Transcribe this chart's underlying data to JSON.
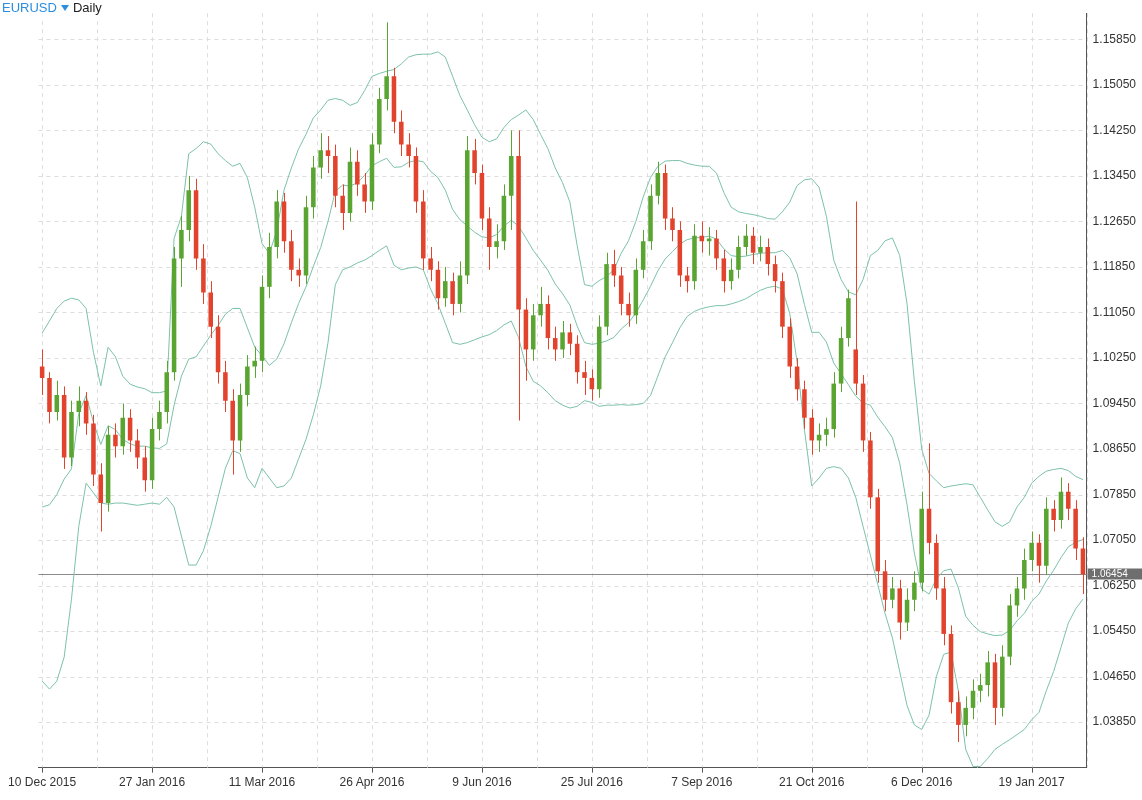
{
  "chart_data": {
    "type": "candlestick",
    "title": "EURUSD",
    "subtitle": "Daily",
    "categories": [
      "10 Dec 2015",
      null,
      null,
      null,
      null,
      null,
      null,
      null,
      null,
      null,
      null,
      null,
      null,
      null,
      null,
      "27 Jan 2016",
      null,
      null,
      null,
      null,
      null,
      null,
      null,
      null,
      null,
      null,
      null,
      null,
      null,
      null,
      "11 Mar 2016",
      null,
      null,
      null,
      null,
      null,
      null,
      null,
      null,
      null,
      null,
      null,
      null,
      null,
      null,
      "26 Apr 2016",
      null,
      null,
      null,
      null,
      null,
      null,
      null,
      null,
      null,
      null,
      null,
      null,
      null,
      null,
      "9 Jun 2016",
      null,
      null,
      null,
      null,
      null,
      null,
      null,
      null,
      null,
      null,
      null,
      null,
      null,
      null,
      "25 Jul 2016",
      null,
      null,
      null,
      null,
      null,
      null,
      null,
      null,
      null,
      null,
      null,
      null,
      null,
      null,
      "7 Sep 2016",
      null,
      null,
      null,
      null,
      null,
      null,
      null,
      null,
      null,
      null,
      null,
      null,
      null,
      null,
      "21 Oct 2016",
      null,
      null,
      null,
      null,
      null,
      null,
      null,
      null,
      null,
      null,
      null,
      null,
      null,
      null,
      "6 Dec 2016",
      null,
      null,
      null,
      null,
      null,
      null,
      null,
      null,
      null,
      null,
      null,
      null,
      null,
      null,
      "19 Jan 2017",
      null,
      null,
      null,
      null,
      null,
      null,
      null
    ],
    "ohlc": [
      [
        1.101,
        1.104,
        1.096,
        1.099
      ],
      [
        1.099,
        1.1,
        1.091,
        1.093
      ],
      [
        1.093,
        1.0985,
        1.0915,
        1.096
      ],
      [
        1.096,
        1.0975,
        1.083,
        1.085
      ],
      [
        1.085,
        1.095,
        1.0835,
        1.093
      ],
      [
        1.093,
        1.0975,
        1.0905,
        1.095
      ],
      [
        1.095,
        1.0965,
        1.089,
        1.091
      ],
      [
        1.091,
        1.0925,
        1.08,
        1.082
      ],
      [
        1.082,
        1.084,
        1.072,
        1.077
      ],
      [
        1.077,
        1.0905,
        1.0755,
        1.089
      ],
      [
        1.089,
        1.091,
        1.085,
        1.087
      ],
      [
        1.087,
        1.0945,
        1.0855,
        1.092
      ],
      [
        1.092,
        1.0935,
        1.086,
        1.088
      ],
      [
        1.088,
        1.09,
        1.083,
        1.085
      ],
      [
        1.085,
        1.087,
        1.079,
        1.081
      ],
      [
        1.081,
        1.092,
        1.0795,
        1.09
      ],
      [
        1.09,
        1.095,
        1.088,
        1.093
      ],
      [
        1.093,
        1.102,
        1.091,
        1.1
      ],
      [
        1.1,
        1.122,
        1.0985,
        1.12
      ],
      [
        1.12,
        1.1275,
        1.115,
        1.125
      ],
      [
        1.125,
        1.1345,
        1.123,
        1.132
      ],
      [
        1.132,
        1.134,
        1.118,
        1.12
      ],
      [
        1.12,
        1.1225,
        1.112,
        1.114
      ],
      [
        1.114,
        1.116,
        1.106,
        1.108
      ],
      [
        1.108,
        1.11,
        1.098,
        1.1
      ],
      [
        1.1,
        1.102,
        1.093,
        1.095
      ],
      [
        1.095,
        1.097,
        1.082,
        1.088
      ],
      [
        1.088,
        1.098,
        1.086,
        1.096
      ],
      [
        1.096,
        1.103,
        1.094,
        1.101
      ],
      [
        1.101,
        1.1045,
        1.099,
        1.102
      ],
      [
        1.102,
        1.117,
        1.1,
        1.115
      ],
      [
        1.115,
        1.1245,
        1.113,
        1.122
      ],
      [
        1.122,
        1.132,
        1.12,
        1.13
      ],
      [
        1.13,
        1.1315,
        1.121,
        1.123
      ],
      [
        1.123,
        1.125,
        1.116,
        1.118
      ],
      [
        1.118,
        1.12,
        1.115,
        1.117
      ],
      [
        1.117,
        1.131,
        1.1155,
        1.129
      ],
      [
        1.129,
        1.138,
        1.127,
        1.136
      ],
      [
        1.136,
        1.142,
        1.134,
        1.139
      ],
      [
        1.139,
        1.1415,
        1.135,
        1.138
      ],
      [
        1.138,
        1.14,
        1.129,
        1.131
      ],
      [
        1.131,
        1.133,
        1.125,
        1.128
      ],
      [
        1.128,
        1.1395,
        1.1265,
        1.137
      ],
      [
        1.137,
        1.139,
        1.131,
        1.133
      ],
      [
        1.133,
        1.135,
        1.128,
        1.13
      ],
      [
        1.13,
        1.142,
        1.1285,
        1.14
      ],
      [
        1.14,
        1.15,
        1.1385,
        1.148
      ],
      [
        1.148,
        1.1615,
        1.146,
        1.152
      ],
      [
        1.152,
        1.1535,
        1.142,
        1.144
      ],
      [
        1.144,
        1.146,
        1.138,
        1.14
      ],
      [
        1.14,
        1.142,
        1.136,
        1.138
      ],
      [
        1.138,
        1.1395,
        1.128,
        1.13
      ],
      [
        1.13,
        1.132,
        1.118,
        1.12
      ],
      [
        1.12,
        1.122,
        1.116,
        1.118
      ],
      [
        1.118,
        1.1195,
        1.111,
        1.113
      ],
      [
        1.113,
        1.1185,
        1.1115,
        1.116
      ],
      [
        1.116,
        1.1175,
        1.11,
        1.112
      ],
      [
        1.112,
        1.1195,
        1.1105,
        1.117
      ],
      [
        1.117,
        1.1415,
        1.1155,
        1.139
      ],
      [
        1.139,
        1.141,
        1.133,
        1.135
      ],
      [
        1.135,
        1.1365,
        1.125,
        1.127
      ],
      [
        1.127,
        1.129,
        1.118,
        1.122
      ],
      [
        1.122,
        1.126,
        1.12,
        1.123
      ],
      [
        1.123,
        1.133,
        1.1215,
        1.131
      ],
      [
        1.131,
        1.1425,
        1.125,
        1.138
      ],
      [
        1.138,
        1.1425,
        1.0915,
        1.111
      ],
      [
        1.111,
        1.113,
        1.0985,
        1.104
      ],
      [
        1.104,
        1.112,
        1.102,
        1.11
      ],
      [
        1.11,
        1.115,
        1.108,
        1.112
      ],
      [
        1.112,
        1.1135,
        1.104,
        1.106
      ],
      [
        1.106,
        1.108,
        1.102,
        1.104
      ],
      [
        1.104,
        1.109,
        1.1025,
        1.107
      ],
      [
        1.107,
        1.1085,
        1.103,
        1.105
      ],
      [
        1.105,
        1.1065,
        1.098,
        1.1
      ],
      [
        1.1,
        1.102,
        1.096,
        1.099
      ],
      [
        1.099,
        1.1005,
        1.095,
        1.097
      ],
      [
        1.097,
        1.11,
        1.0955,
        1.108
      ],
      [
        1.108,
        1.121,
        1.1065,
        1.119
      ],
      [
        1.119,
        1.1215,
        1.115,
        1.117
      ],
      [
        1.117,
        1.1185,
        1.11,
        1.112
      ],
      [
        1.112,
        1.114,
        1.108,
        1.11
      ],
      [
        1.11,
        1.12,
        1.1085,
        1.118
      ],
      [
        1.118,
        1.125,
        1.1165,
        1.123
      ],
      [
        1.123,
        1.133,
        1.1215,
        1.131
      ],
      [
        1.131,
        1.137,
        1.1295,
        1.135
      ],
      [
        1.135,
        1.1365,
        1.125,
        1.127
      ],
      [
        1.127,
        1.129,
        1.123,
        1.125
      ],
      [
        1.125,
        1.1265,
        1.115,
        1.117
      ],
      [
        1.117,
        1.1185,
        1.114,
        1.116
      ],
      [
        1.116,
        1.126,
        1.1145,
        1.124
      ],
      [
        1.124,
        1.1265,
        1.121,
        1.123
      ],
      [
        1.123,
        1.1255,
        1.1205,
        1.1235
      ],
      [
        1.1235,
        1.125,
        1.118,
        1.12
      ],
      [
        1.12,
        1.1215,
        1.114,
        1.116
      ],
      [
        1.116,
        1.12,
        1.1145,
        1.118
      ],
      [
        1.118,
        1.124,
        1.1165,
        1.122
      ],
      [
        1.122,
        1.126,
        1.1205,
        1.124
      ],
      [
        1.124,
        1.1255,
        1.119,
        1.121
      ],
      [
        1.121,
        1.124,
        1.1195,
        1.122
      ],
      [
        1.122,
        1.1235,
        1.117,
        1.119
      ],
      [
        1.119,
        1.1205,
        1.114,
        1.116
      ],
      [
        1.116,
        1.1175,
        1.106,
        1.108
      ],
      [
        1.108,
        1.1095,
        1.099,
        1.101
      ],
      [
        1.101,
        1.1025,
        1.095,
        1.097
      ],
      [
        1.097,
        1.0985,
        1.09,
        1.092
      ],
      [
        1.092,
        1.0935,
        1.0855,
        1.088
      ],
      [
        1.088,
        1.091,
        1.086,
        1.089
      ],
      [
        1.089,
        1.092,
        1.087,
        1.09
      ],
      [
        1.09,
        1.1,
        1.0885,
        1.098
      ],
      [
        1.098,
        1.108,
        1.0965,
        1.106
      ],
      [
        1.106,
        1.1145,
        1.1045,
        1.113
      ],
      [
        1.104,
        1.13,
        1.096,
        1.098
      ],
      [
        1.098,
        1.0995,
        1.086,
        1.088
      ],
      [
        1.088,
        1.0895,
        1.076,
        1.078
      ],
      [
        1.078,
        1.0795,
        1.063,
        1.065
      ],
      [
        1.065,
        1.067,
        1.058,
        1.06
      ],
      [
        1.06,
        1.064,
        1.0585,
        1.062
      ],
      [
        1.062,
        1.0635,
        1.053,
        1.056
      ],
      [
        1.056,
        1.062,
        1.0545,
        1.06
      ],
      [
        1.06,
        1.065,
        1.058,
        1.063
      ],
      [
        1.063,
        1.079,
        1.0615,
        1.076
      ],
      [
        1.076,
        1.0875,
        1.068,
        1.07
      ],
      [
        1.07,
        1.0715,
        1.06,
        1.062
      ],
      [
        1.062,
        1.064,
        1.052,
        1.054
      ],
      [
        1.054,
        1.0555,
        1.04,
        1.042
      ],
      [
        1.042,
        1.044,
        1.035,
        1.038
      ],
      [
        1.038,
        1.043,
        1.036,
        1.041
      ],
      [
        1.041,
        1.046,
        1.039,
        1.044
      ],
      [
        1.044,
        1.047,
        1.042,
        1.045
      ],
      [
        1.045,
        1.051,
        1.043,
        1.049
      ],
      [
        1.049,
        1.0505,
        1.038,
        1.041
      ],
      [
        1.041,
        1.052,
        1.0395,
        1.05
      ],
      [
        1.05,
        1.061,
        1.0485,
        1.059
      ],
      [
        1.059,
        1.064,
        1.057,
        1.062
      ],
      [
        1.062,
        1.069,
        1.06,
        1.067
      ],
      [
        1.067,
        1.072,
        1.065,
        1.07
      ],
      [
        1.07,
        1.0715,
        1.063,
        1.066
      ],
      [
        1.066,
        1.078,
        1.0645,
        1.076
      ],
      [
        1.076,
        1.0775,
        1.072,
        1.074
      ],
      [
        1.074,
        1.0815,
        1.0725,
        1.079
      ],
      [
        1.079,
        1.0805,
        1.074,
        1.076
      ],
      [
        1.076,
        1.0775,
        1.067,
        1.069
      ],
      [
        1.069,
        1.071,
        1.061,
        1.0645
      ]
    ],
    "colors": [
      "#e2432d",
      "#e2432d",
      "#5aa431",
      "#e2432d",
      "#5aa431",
      "#5aa431",
      "#e2432d",
      "#e2432d",
      "#e2432d",
      "#5aa431",
      "#e2432d",
      "#5aa431",
      "#e2432d",
      "#e2432d",
      "#e2432d",
      "#5aa431",
      "#5aa431",
      "#5aa431",
      "#5aa431",
      "#5aa431",
      "#5aa431",
      "#e2432d",
      "#e2432d",
      "#e2432d",
      "#e2432d",
      "#e2432d",
      "#e2432d",
      "#5aa431",
      "#5aa431",
      "#5aa431",
      "#5aa431",
      "#5aa431",
      "#5aa431",
      "#e2432d",
      "#e2432d",
      "#e2432d",
      "#5aa431",
      "#5aa431",
      "#5aa431",
      "#e2432d",
      "#e2432d",
      "#e2432d",
      "#5aa431",
      "#e2432d",
      "#e2432d",
      "#5aa431",
      "#5aa431",
      "#5aa431",
      "#e2432d",
      "#e2432d",
      "#e2432d",
      "#e2432d",
      "#e2432d",
      "#e2432d",
      "#e2432d",
      "#5aa431",
      "#e2432d",
      "#5aa431",
      "#5aa431",
      "#e2432d",
      "#e2432d",
      "#e2432d",
      "#5aa431",
      "#5aa431",
      "#5aa431",
      "#e2432d",
      "#e2432d",
      "#5aa431",
      "#5aa431",
      "#e2432d",
      "#e2432d",
      "#5aa431",
      "#e2432d",
      "#e2432d",
      "#e2432d",
      "#e2432d",
      "#5aa431",
      "#5aa431",
      "#e2432d",
      "#e2432d",
      "#e2432d",
      "#5aa431",
      "#5aa431",
      "#5aa431",
      "#5aa431",
      "#e2432d",
      "#e2432d",
      "#e2432d",
      "#e2432d",
      "#5aa431",
      "#e2432d",
      "#5aa431",
      "#e2432d",
      "#e2432d",
      "#5aa431",
      "#5aa431",
      "#5aa431",
      "#e2432d",
      "#5aa431",
      "#e2432d",
      "#e2432d",
      "#e2432d",
      "#e2432d",
      "#e2432d",
      "#e2432d",
      "#e2432d",
      "#5aa431",
      "#5aa431",
      "#5aa431",
      "#5aa431",
      "#5aa431",
      "#e2432d",
      "#e2432d",
      "#e2432d",
      "#e2432d",
      "#e2432d",
      "#5aa431",
      "#e2432d",
      "#5aa431",
      "#5aa431",
      "#5aa431",
      "#e2432d",
      "#e2432d",
      "#e2432d",
      "#e2432d",
      "#e2432d",
      "#5aa431",
      "#5aa431",
      "#5aa431",
      "#5aa431",
      "#e2432d",
      "#5aa431",
      "#5aa431",
      "#5aa431",
      "#5aa431",
      "#5aa431",
      "#e2432d",
      "#5aa431",
      "#e2432d",
      "#5aa431",
      "#e2432d",
      "#e2432d",
      "#e2432d"
    ],
    "series": [
      {
        "type": "line",
        "color": "#7cc2a9",
        "values": [
          1.1069,
          1.109,
          1.1112,
          1.1125,
          1.113,
          1.1127,
          1.1112,
          1.1035,
          1.0976,
          1.1044,
          1.1027,
          1.0993,
          1.0979,
          1.0974,
          1.0971,
          1.0964,
          1.0964,
          1.0967,
          1.1235,
          1.1274,
          1.1384,
          1.1393,
          1.1405,
          1.1401,
          1.1384,
          1.1372,
          1.1362,
          1.1367,
          1.1342,
          1.129,
          1.1226,
          1.1209,
          1.1248,
          1.132,
          1.1359,
          1.1393,
          1.1418,
          1.1447,
          1.1461,
          1.1478,
          1.1481,
          1.1478,
          1.1469,
          1.1474,
          1.1495,
          1.152,
          1.1525,
          1.1529,
          1.1532,
          1.1542,
          1.1554,
          1.1558,
          1.1559,
          1.1559,
          1.1563,
          1.1554,
          1.152,
          1.1486,
          1.1461,
          1.1435,
          1.1413,
          1.1405,
          1.141,
          1.143,
          1.1444,
          1.1452,
          1.1461,
          1.1444,
          1.1418,
          1.1393,
          1.1359,
          1.1333,
          1.1299,
          1.1222,
          1.1154,
          1.1151,
          1.1161,
          1.1168,
          1.118,
          1.1209,
          1.1231,
          1.1265,
          1.1308,
          1.1342,
          1.1362,
          1.1371,
          1.1372,
          1.1372,
          1.1367,
          1.1364,
          1.1362,
          1.1362,
          1.135,
          1.1316,
          1.129,
          1.1282,
          1.1279,
          1.1277,
          1.1274,
          1.127,
          1.1269,
          1.1282,
          1.1299,
          1.1328,
          1.1338,
          1.134,
          1.1325,
          1.1274,
          1.1197,
          1.1163,
          1.1141,
          1.1136,
          1.1163,
          1.1205,
          1.1214,
          1.1231,
          1.1236,
          1.1205,
          1.112,
          1.0984,
          1.0865,
          1.0822,
          1.0809,
          1.0797,
          1.08,
          1.0802,
          1.0804,
          1.0802,
          1.078,
          1.0758,
          1.0737,
          1.0729,
          1.0737,
          1.0763,
          1.078,
          1.0805,
          1.0817,
          1.0826,
          1.0829,
          1.0831,
          1.0827,
          1.0817,
          1.0811
        ]
      },
      {
        "type": "line",
        "color": "#7cc2a9",
        "values": [
          1.0763,
          1.0767,
          1.0785,
          1.0812,
          1.083,
          1.0928,
          1.0959,
          1.0912,
          1.0873,
          1.0906,
          1.0899,
          1.0882,
          1.0874,
          1.087,
          1.087,
          1.0867,
          1.0866,
          1.0874,
          1.0942,
          1.0993,
          1.1023,
          1.1027,
          1.1046,
          1.1065,
          1.1082,
          1.1102,
          1.1112,
          1.1112,
          1.1078,
          1.1044,
          1.1029,
          1.1012,
          1.1023,
          1.105,
          1.1087,
          1.1121,
          1.115,
          1.1186,
          1.1219,
          1.1265,
          1.1318,
          1.1329,
          1.1327,
          1.1333,
          1.1346,
          1.1363,
          1.137,
          1.1376,
          1.136,
          1.1361,
          1.1369,
          1.1372,
          1.137,
          1.1353,
          1.1342,
          1.132,
          1.1286,
          1.1268,
          1.1257,
          1.1246,
          1.1238,
          1.1236,
          1.1242,
          1.1257,
          1.1267,
          1.1257,
          1.1236,
          1.1214,
          1.1197,
          1.1179,
          1.1155,
          1.1138,
          1.1118,
          1.1081,
          1.1052,
          1.1049,
          1.1051,
          1.1055,
          1.1061,
          1.1076,
          1.1087,
          1.1104,
          1.1127,
          1.1151,
          1.1178,
          1.1199,
          1.1212,
          1.1225,
          1.1233,
          1.1236,
          1.1237,
          1.1239,
          1.1234,
          1.1217,
          1.1205,
          1.1203,
          1.1204,
          1.1207,
          1.1209,
          1.121,
          1.121,
          1.1214,
          1.1201,
          1.1173,
          1.1119,
          1.107,
          1.107,
          1.1053,
          1.1016,
          1.0997,
          1.0978,
          1.0958,
          1.0946,
          1.0942,
          1.0921,
          1.0904,
          1.0885,
          1.084,
          1.0767,
          1.0682,
          1.0619,
          1.061,
          1.0637,
          1.0651,
          1.0654,
          1.0621,
          1.0571,
          1.0555,
          1.0544,
          1.054,
          1.0537,
          1.0538,
          1.0546,
          1.0563,
          1.0576,
          1.0597,
          1.061,
          1.0633,
          1.0652,
          1.0674,
          1.0693,
          1.0701,
          1.0706
        ]
      },
      {
        "type": "line",
        "color": "#7cc2a9",
        "values": [
          1.0457,
          1.0443,
          1.0457,
          1.0499,
          1.0601,
          1.0729,
          1.0805,
          1.0788,
          1.077,
          1.0768,
          1.077,
          1.077,
          1.0768,
          1.0766,
          1.0768,
          1.077,
          1.0768,
          1.078,
          1.0763,
          1.0712,
          1.0661,
          1.0661,
          1.0686,
          1.0729,
          1.078,
          1.0831,
          1.0862,
          1.0857,
          1.0814,
          1.0797,
          1.0831,
          1.0814,
          1.0797,
          1.08,
          1.0814,
          1.0848,
          1.0882,
          1.0925,
          1.0976,
          1.1052,
          1.1154,
          1.118,
          1.1185,
          1.1192,
          1.1197,
          1.1205,
          1.1214,
          1.1222,
          1.1188,
          1.118,
          1.1183,
          1.1185,
          1.118,
          1.1146,
          1.112,
          1.1086,
          1.1052,
          1.1049,
          1.1052,
          1.1057,
          1.1062,
          1.1066,
          1.1073,
          1.1083,
          1.109,
          1.1061,
          1.101,
          1.0984,
          1.0976,
          1.0964,
          1.095,
          1.0942,
          1.0937,
          1.094,
          1.095,
          1.0947,
          1.094,
          1.0942,
          1.0942,
          1.0943,
          1.0942,
          1.0943,
          1.0945,
          1.0959,
          1.0993,
          1.1027,
          1.1052,
          1.1078,
          1.1098,
          1.1107,
          1.1112,
          1.1115,
          1.1117,
          1.1117,
          1.112,
          1.1124,
          1.1129,
          1.1137,
          1.1144,
          1.1149,
          1.1151,
          1.1146,
          1.1103,
          1.1018,
          1.0899,
          1.08,
          1.0814,
          1.0831,
          1.0834,
          1.0831,
          1.0814,
          1.078,
          1.0729,
          1.0678,
          1.0627,
          1.0576,
          1.0533,
          1.0474,
          1.0414,
          1.038,
          1.0372,
          1.0397,
          1.0465,
          1.0504,
          1.0508,
          1.044,
          1.0337,
          1.0307,
          1.0307,
          1.0321,
          1.0337,
          1.0346,
          1.0354,
          1.0363,
          1.0372,
          1.0389,
          1.0402,
          1.044,
          1.0474,
          1.0516,
          1.0559,
          1.0584,
          1.0601
        ]
      }
    ],
    "marker": "none",
    "ylim": [
      1.0305,
      1.1631
    ],
    "yticks": [
      {
        "value": 1.0385,
        "label": "1.03850"
      },
      {
        "value": 1.0465,
        "label": "1.04650"
      },
      {
        "value": 1.0545,
        "label": "1.05450"
      },
      {
        "value": 1.0625,
        "label": "1.06250"
      },
      {
        "value": 1.0705,
        "label": "1.07050"
      },
      {
        "value": 1.0785,
        "label": "1.07850"
      },
      {
        "value": 1.0865,
        "label": "1.08650"
      },
      {
        "value": 1.0945,
        "label": "1.09450"
      },
      {
        "value": 1.1025,
        "label": "1.10250"
      },
      {
        "value": 1.1105,
        "label": "1.11050"
      },
      {
        "value": 1.1185,
        "label": "1.11850"
      },
      {
        "value": 1.1265,
        "label": "1.12650"
      },
      {
        "value": 1.1345,
        "label": "1.13450"
      },
      {
        "value": 1.1425,
        "label": "1.14250"
      },
      {
        "value": 1.1505,
        "label": "1.15050"
      },
      {
        "value": 1.1585,
        "label": "1.15850"
      }
    ],
    "grid": true,
    "ref_lines": [
      {
        "axis": "y",
        "value": 1.06454,
        "label": "1.06454",
        "color": "#8a8a8a"
      }
    ]
  }
}
